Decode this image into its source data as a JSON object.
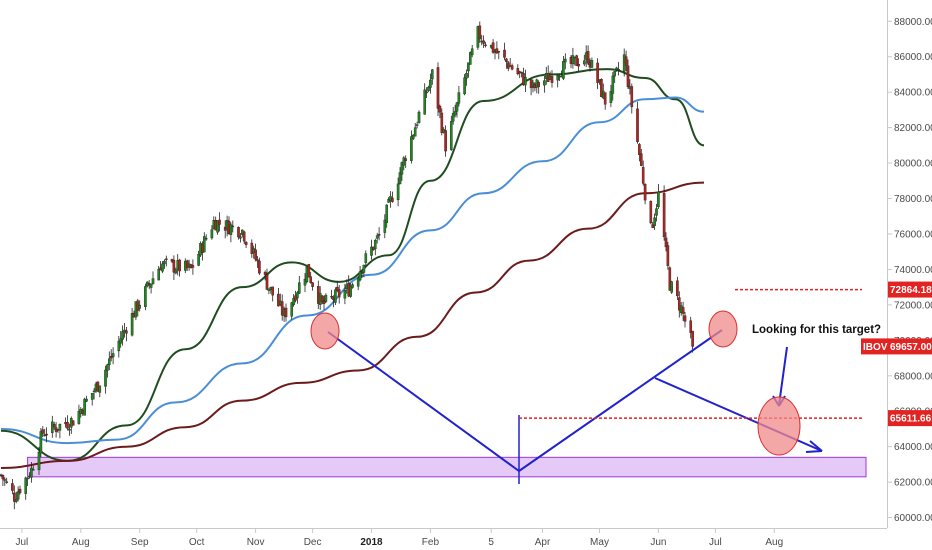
{
  "chart_data": {
    "type": "candlestick",
    "symbol": "IBOV",
    "x_labels": [
      "Jul",
      "Aug",
      "Sep",
      "Oct",
      "Nov",
      "Dec",
      "2018",
      "Feb",
      "5",
      "Apr",
      "May",
      "Jun",
      "Jul",
      "Aug"
    ],
    "y_ticks": [
      "60000.00",
      "62000.00",
      "64000.00",
      "66000.00",
      "68000.00",
      "70000.00",
      "72000.00",
      "74000.00",
      "76000.00",
      "78000.00",
      "80000.00",
      "82000.00",
      "84000.00",
      "86000.00",
      "88000.00"
    ],
    "ylim": [
      59300,
      89200
    ],
    "grid": false,
    "price_waypoints": [
      {
        "date": "2017-06-20",
        "close": 62400
      },
      {
        "date": "2017-06-27",
        "close": 61200
      },
      {
        "date": "2017-07-06",
        "close": 62700
      },
      {
        "date": "2017-07-12",
        "close": 64800
      },
      {
        "date": "2017-07-28",
        "close": 65500
      },
      {
        "date": "2017-08-10",
        "close": 67500
      },
      {
        "date": "2017-08-25",
        "close": 70800
      },
      {
        "date": "2017-09-12",
        "close": 74300
      },
      {
        "date": "2017-09-28",
        "close": 74000
      },
      {
        "date": "2017-10-10",
        "close": 76700
      },
      {
        "date": "2017-10-25",
        "close": 76200
      },
      {
        "date": "2017-11-08",
        "close": 73000
      },
      {
        "date": "2017-11-16",
        "close": 71400
      },
      {
        "date": "2017-11-28",
        "close": 74000
      },
      {
        "date": "2017-12-06",
        "close": 72000
      },
      {
        "date": "2017-12-20",
        "close": 72900
      },
      {
        "date": "2018-01-05",
        "close": 75900
      },
      {
        "date": "2018-01-20",
        "close": 80800
      },
      {
        "date": "2018-02-02",
        "close": 85000
      },
      {
        "date": "2018-02-09",
        "close": 81000
      },
      {
        "date": "2018-02-26",
        "close": 87300
      },
      {
        "date": "2018-03-12",
        "close": 85800
      },
      {
        "date": "2018-03-27",
        "close": 84200
      },
      {
        "date": "2018-04-10",
        "close": 85300
      },
      {
        "date": "2018-04-25",
        "close": 86000
      },
      {
        "date": "2018-05-04",
        "close": 83500
      },
      {
        "date": "2018-05-14",
        "close": 86000
      },
      {
        "date": "2018-05-21",
        "close": 81200
      },
      {
        "date": "2018-05-28",
        "close": 76200
      },
      {
        "date": "2018-06-01",
        "close": 78200
      },
      {
        "date": "2018-06-07",
        "close": 73200
      },
      {
        "date": "2018-06-13",
        "close": 71800
      },
      {
        "date": "2018-06-19",
        "close": 69657
      }
    ],
    "series": [
      {
        "name": "",
        "color": "#1f4d1f",
        "points": [
          {
            "date": "2017-06-20",
            "value": 64900
          },
          {
            "date": "2017-07-25",
            "value": 63200
          },
          {
            "date": "2017-08-25",
            "value": 65200
          },
          {
            "date": "2017-09-25",
            "value": 69500
          },
          {
            "date": "2017-10-25",
            "value": 73000
          },
          {
            "date": "2017-11-20",
            "value": 74400
          },
          {
            "date": "2017-12-15",
            "value": 73300
          },
          {
            "date": "2018-01-10",
            "value": 74800
          },
          {
            "date": "2018-02-01",
            "value": 79000
          },
          {
            "date": "2018-03-01",
            "value": 83500
          },
          {
            "date": "2018-04-05",
            "value": 85000
          },
          {
            "date": "2018-05-05",
            "value": 85300
          },
          {
            "date": "2018-05-25",
            "value": 84800
          },
          {
            "date": "2018-06-10",
            "value": 83600
          },
          {
            "date": "2018-06-25",
            "value": 81000
          }
        ]
      },
      {
        "name": "",
        "color": "#4a8fd6",
        "points": [
          {
            "date": "2017-06-20",
            "value": 65000
          },
          {
            "date": "2017-07-25",
            "value": 64200
          },
          {
            "date": "2017-08-20",
            "value": 64400
          },
          {
            "date": "2017-09-20",
            "value": 66500
          },
          {
            "date": "2017-10-25",
            "value": 68700
          },
          {
            "date": "2017-11-28",
            "value": 71400
          },
          {
            "date": "2018-01-01",
            "value": 73700
          },
          {
            "date": "2018-02-01",
            "value": 76200
          },
          {
            "date": "2018-03-01",
            "value": 78300
          },
          {
            "date": "2018-04-01",
            "value": 80100
          },
          {
            "date": "2018-05-01",
            "value": 82300
          },
          {
            "date": "2018-05-25",
            "value": 83600
          },
          {
            "date": "2018-06-10",
            "value": 83700
          },
          {
            "date": "2018-06-25",
            "value": 82900
          }
        ]
      },
      {
        "name": "",
        "color": "#6b1b1b",
        "points": [
          {
            "date": "2017-06-20",
            "value": 62800
          },
          {
            "date": "2017-07-25",
            "value": 63200
          },
          {
            "date": "2017-08-25",
            "value": 64000
          },
          {
            "date": "2017-09-25",
            "value": 65100
          },
          {
            "date": "2017-10-25",
            "value": 66600
          },
          {
            "date": "2017-11-25",
            "value": 67600
          },
          {
            "date": "2017-12-25",
            "value": 68300
          },
          {
            "date": "2018-01-25",
            "value": 70200
          },
          {
            "date": "2018-02-25",
            "value": 72700
          },
          {
            "date": "2018-03-25",
            "value": 74500
          },
          {
            "date": "2018-04-25",
            "value": 76300
          },
          {
            "date": "2018-05-25",
            "value": 78300
          },
          {
            "date": "2018-06-25",
            "value": 78900
          }
        ]
      }
    ],
    "price_labels": [
      {
        "text": "72864.18",
        "value": 72864.18,
        "color": "#e32222"
      },
      {
        "text": "65611.66",
        "value": 65611.66,
        "color": "#e32222"
      }
    ],
    "last_price": {
      "symbol": "IBOV",
      "text": "69657.00",
      "value": 69657.0,
      "color": "#e32222"
    },
    "support_zone": {
      "from": 62300,
      "to": 63400,
      "color": "#cf9df0"
    },
    "annotation": "Looking for this target?",
    "drawings": {
      "line_color": "#2222cc",
      "level_color": "#e32222",
      "highlight_color": "#f08a8a"
    }
  }
}
